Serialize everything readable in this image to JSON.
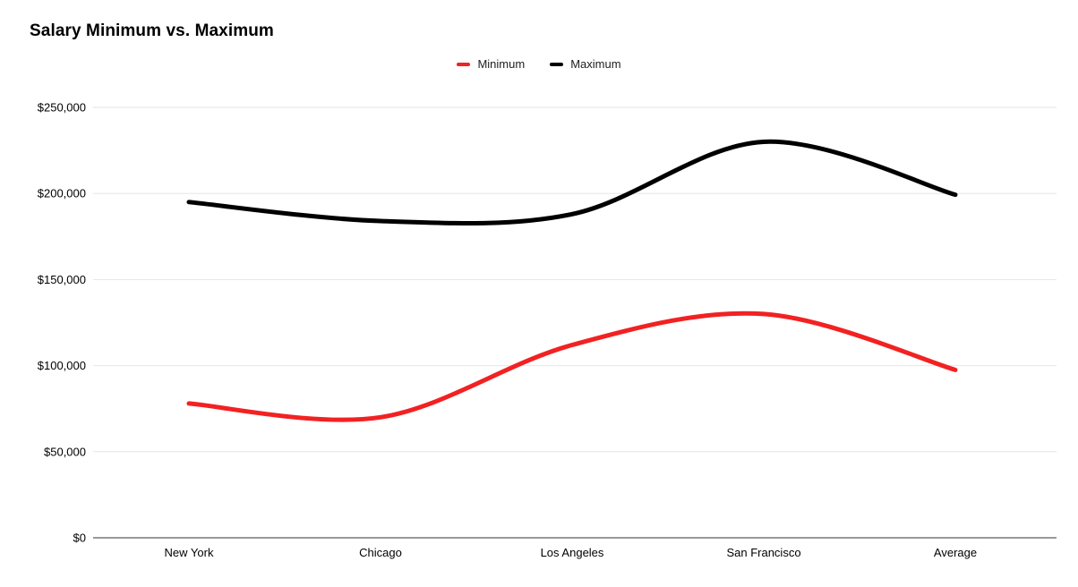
{
  "title": "Salary Minimum vs. Maximum",
  "colors": {
    "minimum_series": "#f22122",
    "maximum_series": "#000000",
    "gridline": "#e6e6e6",
    "axis_line": "#333333",
    "text": "#000000"
  },
  "chart_data": {
    "type": "line",
    "smooth": true,
    "title": "Salary Minimum vs. Maximum",
    "categories": [
      "New York",
      "Chicago",
      "Los Angeles",
      "San Francisco",
      "Average"
    ],
    "series": [
      {
        "name": "Minimum",
        "color": "#f22122",
        "values": [
          78000,
          70000,
          112000,
          130000,
          97500
        ]
      },
      {
        "name": "Maximum",
        "color": "#000000",
        "values": [
          195000,
          184000,
          188000,
          230000,
          199250
        ]
      }
    ],
    "xlabel": "",
    "ylabel": "",
    "ylim": [
      0,
      250000
    ],
    "ytick_step": 50000,
    "ytick_labels": [
      "$0",
      "$50,000",
      "$100,000",
      "$150,000",
      "$200,000",
      "$250,000"
    ],
    "grid": true,
    "legend_position": "top-center"
  }
}
